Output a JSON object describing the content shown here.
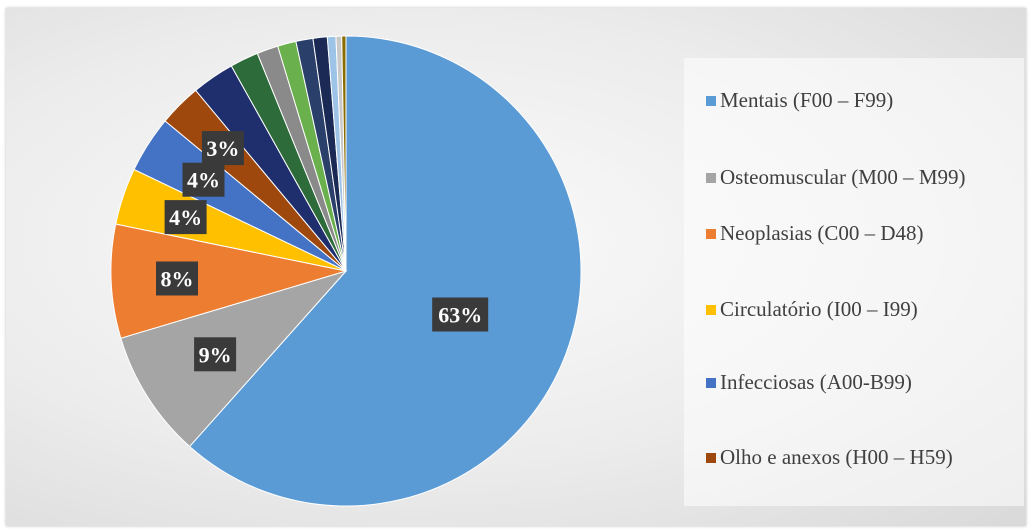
{
  "chart_data": {
    "type": "pie",
    "title": "",
    "slices": [
      {
        "name": "Mentais (F00 – F99)",
        "value": 63,
        "color": "#5b9bd5",
        "label": "63%"
      },
      {
        "name": "Osteomuscular  (M00 – M99)",
        "value": 9,
        "color": "#a5a5a5",
        "label": "9%"
      },
      {
        "name": "Neoplasias (C00 – D48)",
        "value": 8,
        "color": "#ed7d31",
        "label": "8%"
      },
      {
        "name": "Circulatório (I00 – I99)",
        "value": 4,
        "color": "#ffc000",
        "label": "4%"
      },
      {
        "name": "Infecciosas  (A00-B99)",
        "value": 4,
        "color": "#4472c4",
        "label": "4%"
      },
      {
        "name": "Olho e anexos (H00 – H59)",
        "value": 3,
        "color": "#9e480e",
        "label": "3%"
      },
      {
        "name": "",
        "value": 3,
        "color": "#1f2f6e"
      },
      {
        "name": "",
        "value": 2,
        "color": "#2e6b3a"
      },
      {
        "name": "",
        "value": 1.5,
        "color": "#8a8a8a"
      },
      {
        "name": "",
        "value": 1.3,
        "color": "#6ab04c"
      },
      {
        "name": "",
        "value": 1.2,
        "color": "#2b3f6b"
      },
      {
        "name": "",
        "value": 1,
        "color": "#1a2a55"
      },
      {
        "name": "",
        "value": 0.6,
        "color": "#9dc3e6"
      },
      {
        "name": "",
        "value": 0.4,
        "color": "#c9c9c9"
      },
      {
        "name": "",
        "value": 0.3,
        "color": "#8a6d00"
      }
    ],
    "legend": {
      "position": "right",
      "items": [
        "Mentais (F00 – F99)",
        "Osteomuscular  (M00 – M99)",
        "Neoplasias (C00 – D48)",
        "Circulatório (I00 – I99)",
        "Infecciosas  (A00-B99)",
        "Olho e anexos (H00 – H59)"
      ]
    }
  }
}
